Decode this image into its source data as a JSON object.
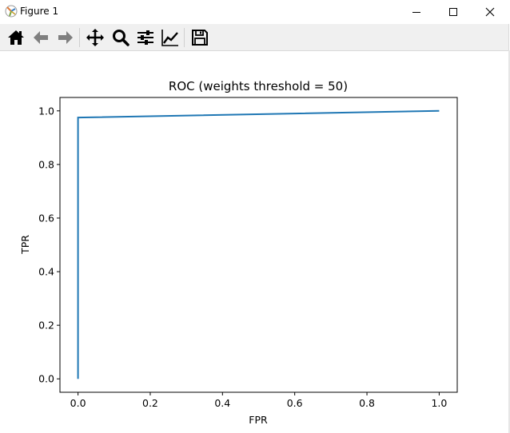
{
  "window": {
    "title": "Figure 1",
    "controls": [
      "minimize",
      "maximize",
      "close"
    ]
  },
  "toolbar": {
    "buttons": [
      {
        "icon": "home-icon",
        "tooltip": "Reset original view"
      },
      {
        "icon": "arrow-left-icon",
        "tooltip": "Back"
      },
      {
        "icon": "arrow-right-icon",
        "tooltip": "Forward"
      },
      {
        "icon": "move-icon",
        "tooltip": "Pan"
      },
      {
        "icon": "magnifier-icon",
        "tooltip": "Zoom"
      },
      {
        "icon": "sliders-icon",
        "tooltip": "Configure subplots"
      },
      {
        "icon": "line-chart-icon",
        "tooltip": "Edit axis"
      },
      {
        "icon": "floppy-disk-icon",
        "tooltip": "Save"
      }
    ]
  },
  "chart_data": {
    "type": "line",
    "title": "ROC (weights threshold = 50)",
    "xlabel": "FPR",
    "ylabel": "TPR",
    "xlim": [
      -0.05,
      1.05
    ],
    "ylim": [
      -0.05,
      1.05
    ],
    "xticks": [
      "0.0",
      "0.2",
      "0.4",
      "0.6",
      "0.8",
      "1.0"
    ],
    "yticks": [
      "0.0",
      "0.2",
      "0.4",
      "0.6",
      "0.8",
      "1.0"
    ],
    "grid": false,
    "series": [
      {
        "color": "#1f77b4",
        "x": [
          0.0,
          0.0,
          1.0
        ],
        "y": [
          0.0,
          0.975,
          1.0
        ]
      }
    ]
  }
}
